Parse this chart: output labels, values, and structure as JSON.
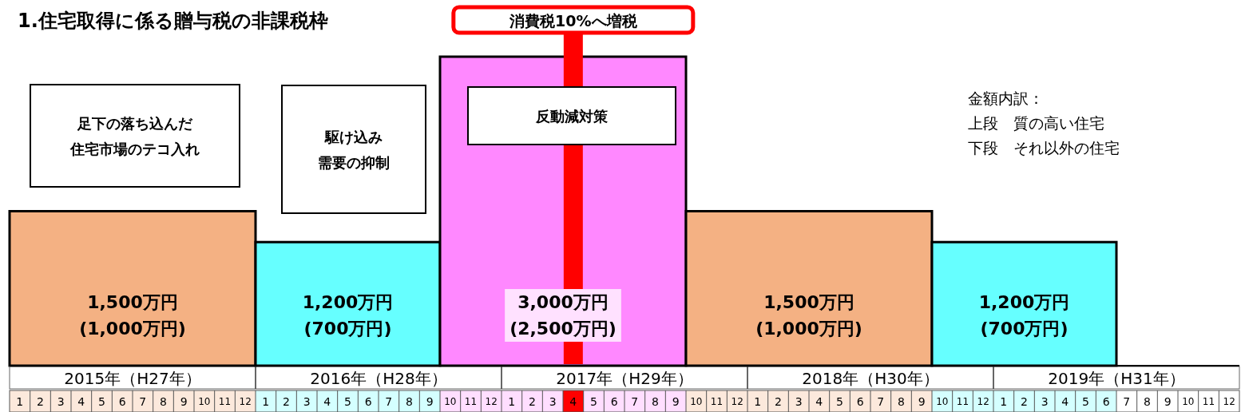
{
  "chart_data": {
    "type": "bar",
    "title": "1.住宅取得に係る贈与税の非課税枠",
    "x": [
      "2015-07",
      "2016-05-16",
      "2017-04",
      "2018-04",
      "2019-02-16"
    ],
    "values": [
      1500,
      1200,
      3000,
      1500,
      1200
    ],
    "colors": [
      "#f4b183",
      "#66ffff",
      "#ff88ff",
      "#f4b183",
      "#66ffff"
    ],
    "value_labels": [
      "1,500万円\n(1,000万円)",
      "1,200万円\n(700万円)",
      "3,000万円\n(2,500万円)",
      "1,500万円\n(1,000万円)",
      "1,200万円\n(700万円)"
    ],
    "tick_labels": "x",
    "xlim": [
      "2015-01",
      "2020-01"
    ],
    "x2lim": [
      "2015-01",
      "2020-01"
    ],
    "xticks": [
      {
        "value": "2015-01-16",
        "label": "1"
      },
      {
        "value": "2015-02-16",
        "label": "2"
      },
      {
        "value": "2015-03-16",
        "label": "3"
      },
      {
        "value": "2015-04-16",
        "label": "4"
      },
      {
        "value": "2015-05-16",
        "label": "5"
      },
      {
        "value": "2015-06-16",
        "label": "6"
      },
      {
        "value": "2015-07-16",
        "label": "7"
      },
      {
        "value": "2015-08-16",
        "label": "8"
      },
      {
        "value": "2015-09-16",
        "label": "9"
      },
      {
        "value": "2015-10-16",
        "label": "10"
      },
      {
        "value": "2015-11-16",
        "label": "11"
      },
      {
        "value": "2015-12-16",
        "label": "12"
      },
      {
        "value": "2016-01-16",
        "label": "1"
      },
      {
        "value": "2016-02-16",
        "label": "2"
      },
      {
        "value": "2016-03-16",
        "label": "3"
      },
      {
        "value": "2016-04-16",
        "label": "4"
      },
      {
        "value": "2016-05-16",
        "label": "5"
      },
      {
        "value": "2016-06-16",
        "label": "6"
      },
      {
        "value": "2016-07-16",
        "label": "7"
      },
      {
        "value": "2016-08-16",
        "label": "8"
      },
      {
        "value": "2016-09-16",
        "label": "9"
      },
      {
        "value": "2016-10-16",
        "label": "10"
      },
      {
        "value": "2016-11-16",
        "label": "11"
      },
      {
        "value": "2016-12-16",
        "label": "12"
      },
      {
        "value": "2017-01-16",
        "label": "1"
      },
      {
        "value": "2017-02-16",
        "label": "2"
      },
      {
        "value": "2017-03-16",
        "label": "3"
      },
      {
        "value": "2017-04-16",
        "label": "4"
      },
      {
        "value": "2017-05-16",
        "label": "5"
      },
      {
        "value": "2017-06-16",
        "label": "6"
      },
      {
        "value": "2017-07-16",
        "label": "7"
      },
      {
        "value": "2017-08-16",
        "label": "8"
      },
      {
        "value": "2017-09-16",
        "label": "9"
      },
      {
        "value": "2017-10-16",
        "label": "10"
      },
      {
        "value": "2017-11-16",
        "label": "11"
      },
      {
        "value": "2017-12-16",
        "label": "12"
      },
      {
        "value": "2018-01-16",
        "label": "1"
      },
      {
        "value": "2018-02-16",
        "label": "2"
      },
      {
        "value": "2018-03-16",
        "label": "3"
      },
      {
        "value": "2018-04-16",
        "label": "4"
      },
      {
        "value": "2018-05-16",
        "label": "5"
      },
      {
        "value": "2018-06-16",
        "label": "6"
      },
      {
        "value": "2018-07-16",
        "label": "7"
      },
      {
        "value": "2018-08-16",
        "label": "8"
      },
      {
        "value": "2018-09-16",
        "label": "9"
      },
      {
        "value": "2018-10-16",
        "label": "10"
      },
      {
        "value": "2018-11-16",
        "label": "11"
      },
      {
        "value": "2018-12-16",
        "label": "12"
      },
      {
        "value": "2019-01-16",
        "label": "1"
      },
      {
        "value": "2019-02-16",
        "label": "2"
      },
      {
        "value": "2019-03-16",
        "label": "3"
      },
      {
        "value": "2019-04-16",
        "label": "4"
      },
      {
        "value": "2019-05-16",
        "label": "5"
      },
      {
        "value": "2019-06-16",
        "label": "6"
      },
      {
        "value": "2019-07-16",
        "label": "7"
      },
      {
        "value": "2019-08-16",
        "label": "8"
      },
      {
        "value": "2019-09-16",
        "label": "9"
      },
      {
        "value": "2019-10-16",
        "label": "10"
      },
      {
        "value": "2019-11-16",
        "label": "11"
      },
      {
        "value": "2019-12-16",
        "label": "12"
      }
    ],
    "x2ticks": [
      {
        "value": "2015-07",
        "label": "2015年（H27年）"
      },
      {
        "value": "2016-07",
        "label": "2016年（H28年）"
      },
      {
        "value": "2017-07",
        "label": "2017年（H29年）"
      },
      {
        "value": "2018-07",
        "label": "2018年（H30年）"
      },
      {
        "value": "2019-07",
        "label": "2019年（H31年）"
      }
    ],
    "ref_lines": [
      {
        "axis": "x",
        "value": "2017-04-16",
        "label": "消費税10%へ増税",
        "color": "#ff0000"
      }
    ],
    "annotations": [
      "足下の落ち込んだ住宅市場のテコ入れ",
      "駆け込み需要の抑制",
      "反動減対策",
      "金額内訳：",
      "上段　質の高い住宅",
      "下段　それ以外の住宅"
    ]
  }
}
